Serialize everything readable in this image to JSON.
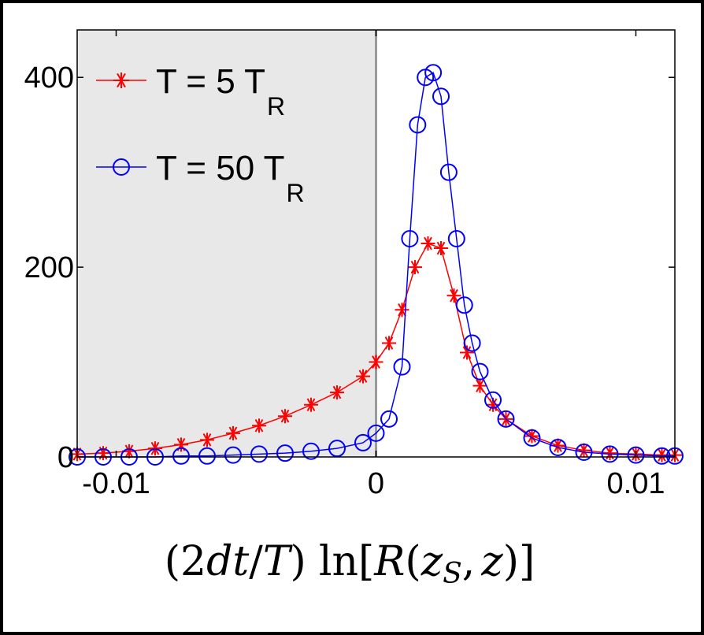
{
  "chart_data": {
    "type": "line",
    "title": "",
    "xlabel": "(2dt/T) ln[R(z_S, z)]",
    "xlabel_parts": {
      "prefix": "(2",
      "d": "d",
      "t": "t",
      "slash": "/",
      "T": "T",
      "close": ")",
      "ln": "ln",
      "open_br": "[",
      "R": "R",
      "open_p": "(",
      "z1": "z",
      "sub": "S",
      "comma": ",",
      "z2": "z",
      "end": ")]"
    },
    "ylabel": "",
    "xlim": [
      -0.0115,
      0.0115
    ],
    "ylim": [
      0,
      450
    ],
    "x_ticks": [
      -0.01,
      0,
      0.01
    ],
    "x_tick_labels": [
      "-0.01",
      "0",
      "0.01"
    ],
    "y_ticks": [
      0,
      200,
      400
    ],
    "y_tick_labels": [
      "0",
      "200",
      "400"
    ],
    "shaded_region": {
      "from": -0.0115,
      "to": 0,
      "color": "#e8e8e8"
    },
    "vertical_line_at": 0,
    "legend": {
      "placement": "top-left"
    },
    "series": [
      {
        "name": "T = 5 T_R",
        "legend_main": "T = 5 T",
        "legend_sub": "R",
        "color": "#ff0000",
        "marker": "asterisk",
        "x": [
          -0.0115,
          -0.0105,
          -0.0095,
          -0.0085,
          -0.0075,
          -0.0065,
          -0.0055,
          -0.0045,
          -0.0035,
          -0.0025,
          -0.0015,
          -0.0005,
          0.0,
          0.0005,
          0.001,
          0.0015,
          0.002,
          0.0025,
          0.003,
          0.0035,
          0.004,
          0.0045,
          0.005,
          0.006,
          0.007,
          0.008,
          0.009,
          0.01,
          0.011,
          0.0115
        ],
        "y": [
          3,
          4,
          6,
          9,
          13,
          18,
          25,
          33,
          43,
          55,
          68,
          85,
          100,
          120,
          155,
          200,
          225,
          220,
          170,
          110,
          75,
          55,
          40,
          22,
          12,
          7,
          4,
          3,
          2,
          2
        ]
      },
      {
        "name": "T = 50 T_R",
        "legend_main": "T = 50 T",
        "legend_sub": "R",
        "color": "#0000ff",
        "marker": "circle",
        "x": [
          -0.0115,
          -0.0105,
          -0.0095,
          -0.0085,
          -0.0075,
          -0.0065,
          -0.0055,
          -0.0045,
          -0.0035,
          -0.0025,
          -0.0015,
          -0.0005,
          0.0,
          0.0005,
          0.001,
          0.0013,
          0.0016,
          0.0019,
          0.0022,
          0.0025,
          0.0028,
          0.0031,
          0.0034,
          0.0037,
          0.004,
          0.0045,
          0.005,
          0.006,
          0.007,
          0.008,
          0.009,
          0.01,
          0.011,
          0.0115
        ],
        "y": [
          0,
          0,
          0,
          0,
          1,
          1,
          2,
          3,
          4,
          6,
          9,
          15,
          25,
          40,
          95,
          230,
          350,
          400,
          405,
          380,
          300,
          230,
          160,
          120,
          90,
          60,
          40,
          20,
          10,
          5,
          3,
          2,
          1,
          1
        ]
      }
    ]
  }
}
